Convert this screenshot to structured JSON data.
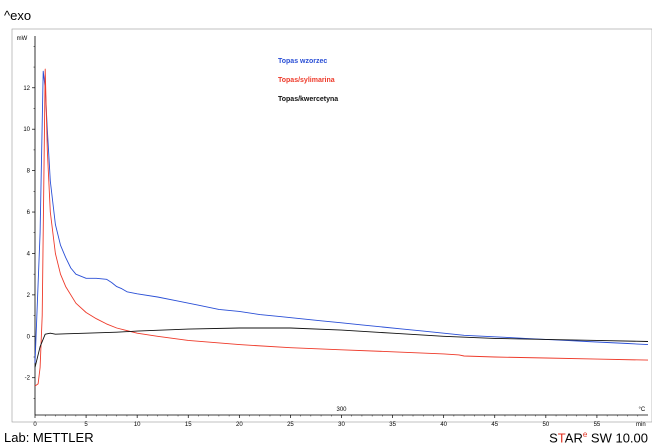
{
  "exo_label": "^exo",
  "footer": {
    "lab": "Lab: METTLER",
    "brand_s": "S",
    "brand_t": "T",
    "brand_ar": "AR",
    "brand_reg": "e",
    "brand_rest": " SW 10.00"
  },
  "chart_data": {
    "type": "line",
    "title": "",
    "xlabel": "min",
    "ylabel": "mW",
    "xlim": [
      0,
      60
    ],
    "ylim": [
      -3.8,
      14.5
    ],
    "x_ticks": [
      0,
      5,
      10,
      15,
      20,
      25,
      30,
      35,
      40,
      45,
      50,
      55
    ],
    "x_tick_unit_label": "min",
    "y_ticks": [
      -2,
      0,
      2,
      4,
      6,
      8,
      10,
      12
    ],
    "y_unit_label": "mW",
    "secondary_axis_label": "300",
    "secondary_axis_unit": "°C",
    "grid": false,
    "legend_position": "top-center",
    "series": [
      {
        "name": "Topas wzorzec",
        "color": "#2a4fd6",
        "x": [
          0,
          0.5,
          0.8,
          1.0,
          1.2,
          1.5,
          2.0,
          2.5,
          3.0,
          3.5,
          4.0,
          5.0,
          6.0,
          7.0,
          7.5,
          8.0,
          8.5,
          9.0,
          10,
          12,
          14,
          16,
          18,
          20,
          22,
          24,
          26,
          28,
          30,
          32,
          34,
          36,
          38,
          40,
          42,
          44,
          46,
          48,
          50,
          52,
          54,
          56,
          58,
          60
        ],
        "y": [
          -1.3,
          5.0,
          12.8,
          12.0,
          10.0,
          7.5,
          5.4,
          4.4,
          3.8,
          3.3,
          3.0,
          2.8,
          2.8,
          2.75,
          2.6,
          2.4,
          2.3,
          2.15,
          2.05,
          1.9,
          1.7,
          1.5,
          1.3,
          1.2,
          1.05,
          0.95,
          0.85,
          0.75,
          0.65,
          0.55,
          0.45,
          0.35,
          0.25,
          0.15,
          0.05,
          0.0,
          -0.05,
          -0.1,
          -0.15,
          -0.2,
          -0.25,
          -0.3,
          -0.35,
          -0.4
        ]
      },
      {
        "name": "Topas/sylimarina",
        "color": "#ee3a2a",
        "x": [
          0,
          0.3,
          0.5,
          0.7,
          1.0,
          1.2,
          1.5,
          2.0,
          2.5,
          3.0,
          4.0,
          5.0,
          6.0,
          7.0,
          8.0,
          10,
          12,
          15,
          20,
          25,
          30,
          35,
          40,
          41.5,
          42,
          45,
          50,
          55,
          60
        ],
        "y": [
          -2.4,
          -2.3,
          -1.5,
          1.0,
          12.9,
          9.0,
          6.0,
          4.0,
          3.0,
          2.4,
          1.6,
          1.15,
          0.85,
          0.6,
          0.4,
          0.15,
          0.0,
          -0.2,
          -0.4,
          -0.55,
          -0.65,
          -0.75,
          -0.85,
          -0.9,
          -0.95,
          -1.0,
          -1.05,
          -1.1,
          -1.15
        ]
      },
      {
        "name": "Topas/kwercetyna",
        "color": "#111111",
        "x": [
          0,
          0.5,
          1.0,
          1.5,
          2.0,
          3.0,
          5.0,
          8.0,
          10,
          15,
          20,
          25,
          30,
          35,
          40,
          45,
          50,
          55,
          60
        ],
        "y": [
          -1.5,
          -0.5,
          0.1,
          0.15,
          0.1,
          0.12,
          0.15,
          0.2,
          0.25,
          0.35,
          0.4,
          0.4,
          0.3,
          0.15,
          0.0,
          -0.1,
          -0.15,
          -0.2,
          -0.25
        ]
      }
    ]
  }
}
